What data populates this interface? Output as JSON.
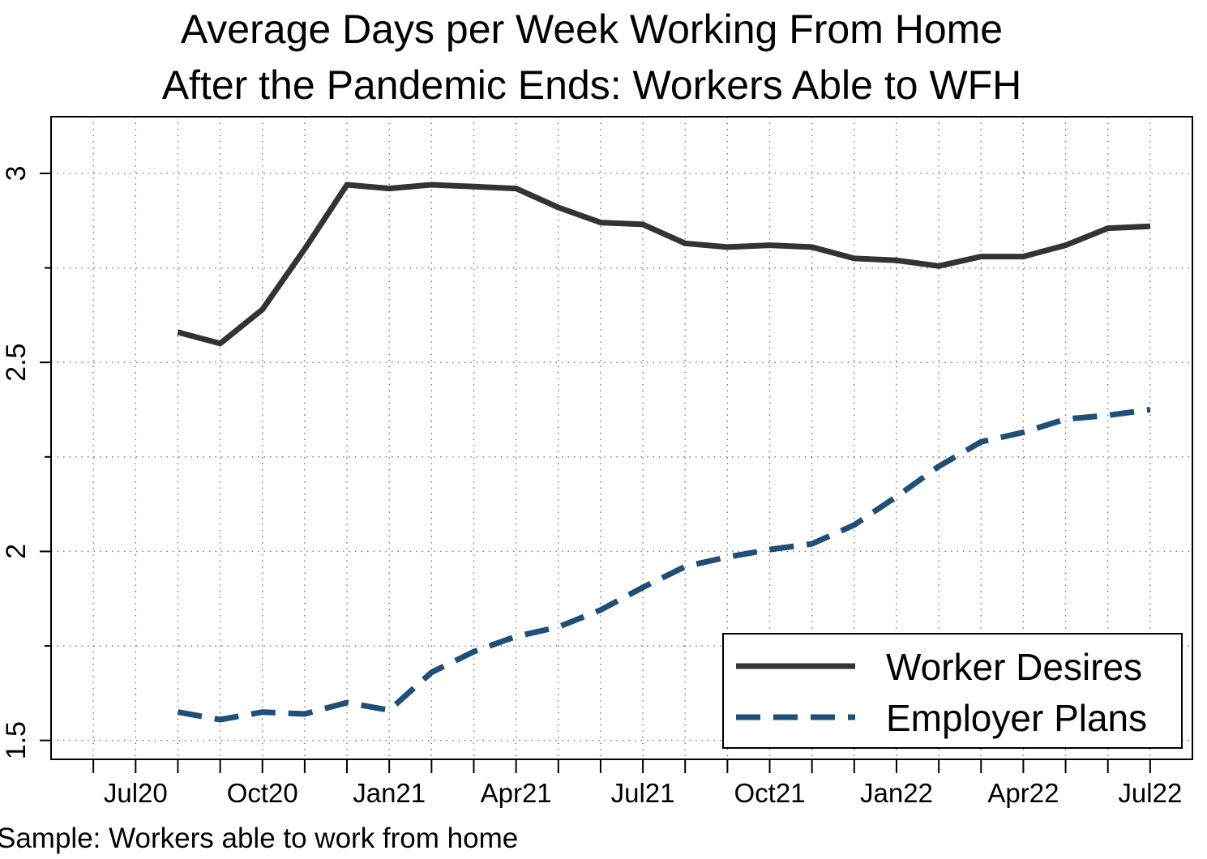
{
  "chart_data": {
    "type": "line",
    "title_lines": [
      "Average Days per Week Working From Home",
      "After the Pandemic Ends: Workers Able to WFH"
    ],
    "note": "Sample: Workers able to work from home",
    "xlabel": "",
    "ylabel": "",
    "x": [
      "2020-08",
      "2020-09",
      "2020-10",
      "2020-11",
      "2020-12",
      "2021-01",
      "2021-02",
      "2021-03",
      "2021-04",
      "2021-05",
      "2021-06",
      "2021-07",
      "2021-08",
      "2021-09",
      "2021-10",
      "2021-11",
      "2021-12",
      "2022-01",
      "2022-02",
      "2022-03",
      "2022-04",
      "2022-05",
      "2022-06",
      "2022-07"
    ],
    "x_tick_labels": [
      "Jul20",
      "Oct20",
      "Jan21",
      "Apr21",
      "Jul21",
      "Oct21",
      "Jan22",
      "Apr22",
      "Jul22"
    ],
    "x_tick_months": [
      "2020-07",
      "2020-10",
      "2021-01",
      "2021-04",
      "2021-07",
      "2021-10",
      "2022-01",
      "2022-04",
      "2022-07"
    ],
    "xlim": [
      "2020-05",
      "2022-08"
    ],
    "y_tick_labels": [
      "1.5",
      "2",
      "2.5",
      "3"
    ],
    "y_ticks": [
      1.5,
      2,
      2.5,
      3
    ],
    "y_minor_ticks": [
      1.75,
      2.25,
      2.75
    ],
    "ylim": [
      1.45,
      3.15
    ],
    "grid": true,
    "legend_position": "bottom-right",
    "series": [
      {
        "name": "Worker Desires",
        "color": "#333333",
        "dash": "solid",
        "values": [
          2.58,
          2.55,
          2.64,
          2.8,
          2.97,
          2.96,
          2.97,
          2.965,
          2.96,
          2.91,
          2.87,
          2.865,
          2.815,
          2.805,
          2.81,
          2.805,
          2.775,
          2.77,
          2.755,
          2.78,
          2.78,
          2.81,
          2.855,
          2.86
        ]
      },
      {
        "name": "Employer Plans",
        "color": "#1f4e79",
        "dash": "dashed",
        "values": [
          1.575,
          1.555,
          1.575,
          1.57,
          1.6,
          1.58,
          1.68,
          1.735,
          1.775,
          1.8,
          1.845,
          1.905,
          1.96,
          1.985,
          2.005,
          2.02,
          2.07,
          2.145,
          2.225,
          2.29,
          2.315,
          2.35,
          2.36,
          2.375
        ]
      }
    ]
  }
}
